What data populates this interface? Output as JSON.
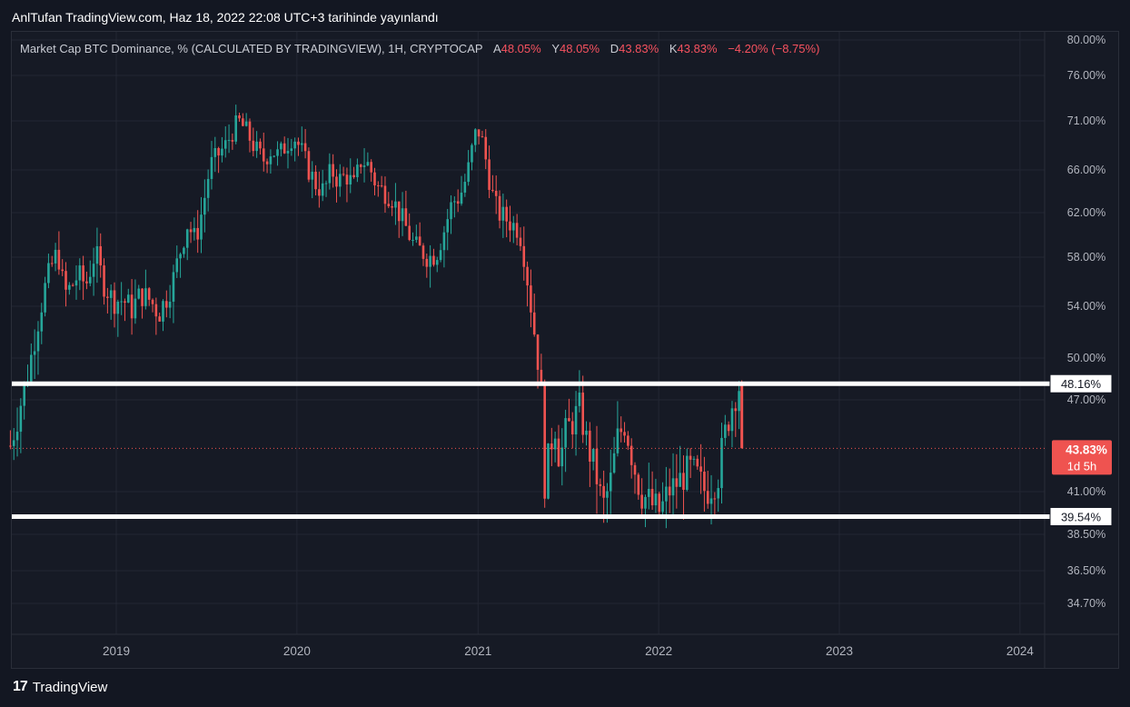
{
  "header": {
    "published": "AnlTufan TradingView.com, Haz 18, 2022 22:08 UTC+3 tarihinde yayınlandı"
  },
  "legend": {
    "symbol": "Market Cap BTC Dominance, % (CALCULATED BY TRADINGVIEW), 1H, CRYPTOCAP",
    "o_label": "A",
    "o_value": "48.05%",
    "h_label": "Y",
    "h_value": "48.05%",
    "l_label": "D",
    "l_value": "43.83%",
    "c_label": "K",
    "c_value": "43.83%",
    "change": "−4.20% (−8.75%)"
  },
  "footer": {
    "brand": "TradingView",
    "logo": "17"
  },
  "colors": {
    "up": "#26a69a",
    "down": "#ef5350",
    "bg": "#161a25",
    "grid": "#232733",
    "axis_text": "#b2b5be"
  },
  "chart_data": {
    "type": "candlestick",
    "y_ticks": [
      "80.00%",
      "76.00%",
      "71.00%",
      "66.00%",
      "62.00%",
      "58.00%",
      "54.00%",
      "50.00%",
      "47.00%",
      "41.00%",
      "38.50%",
      "36.50%",
      "34.70%"
    ],
    "x_ticks": [
      "2019",
      "2020",
      "2021",
      "2022",
      "2023",
      "2024"
    ],
    "horizontal_lines": [
      {
        "label": "48.16%",
        "value": 48.16
      },
      {
        "label": "39.54%",
        "value": 39.54
      }
    ],
    "last_price": {
      "label": "43.83%",
      "value": 43.83,
      "countdown": "1d 5h"
    },
    "price_path": [
      [
        "2018-06-01",
        44.0
      ],
      [
        "2018-06-20",
        46.5
      ],
      [
        "2018-07-10",
        49.5
      ],
      [
        "2018-07-25",
        52.5
      ],
      [
        "2018-08-10",
        55.5
      ],
      [
        "2018-08-25",
        57.5
      ],
      [
        "2018-09-05",
        58.5
      ],
      [
        "2018-09-18",
        55.0
      ],
      [
        "2018-10-01",
        55.5
      ],
      [
        "2018-10-15",
        56.5
      ],
      [
        "2018-11-01",
        55.8
      ],
      [
        "2018-11-20",
        58.5
      ],
      [
        "2018-12-05",
        56.0
      ],
      [
        "2018-12-25",
        54.5
      ],
      [
        "2019-01-15",
        54.5
      ],
      [
        "2019-02-01",
        53.8
      ],
      [
        "2019-02-20",
        55.0
      ],
      [
        "2019-03-10",
        54.5
      ],
      [
        "2019-03-28",
        53.5
      ],
      [
        "2019-04-10",
        54.5
      ],
      [
        "2019-04-25",
        56.0
      ],
      [
        "2019-05-10",
        58.5
      ],
      [
        "2019-05-25",
        61.0
      ],
      [
        "2019-06-10",
        59.5
      ],
      [
        "2019-06-25",
        62.5
      ],
      [
        "2019-07-10",
        66.5
      ],
      [
        "2019-07-25",
        67.5
      ],
      [
        "2019-08-10",
        68.5
      ],
      [
        "2019-08-25",
        70.0
      ],
      [
        "2019-09-05",
        71.0
      ],
      [
        "2019-09-20",
        70.0
      ],
      [
        "2019-10-05",
        68.5
      ],
      [
        "2019-10-25",
        67.0
      ],
      [
        "2019-11-10",
        68.0
      ],
      [
        "2019-11-25",
        67.5
      ],
      [
        "2019-12-10",
        68.5
      ],
      [
        "2019-12-25",
        69.5
      ],
      [
        "2020-01-10",
        68.0
      ],
      [
        "2020-01-25",
        66.0
      ],
      [
        "2020-02-10",
        64.5
      ],
      [
        "2020-02-25",
        64.0
      ],
      [
        "2020-03-10",
        66.0
      ],
      [
        "2020-03-25",
        65.0
      ],
      [
        "2020-04-10",
        65.5
      ],
      [
        "2020-04-25",
        64.5
      ],
      [
        "2020-05-10",
        67.0
      ],
      [
        "2020-05-25",
        66.5
      ],
      [
        "2020-06-10",
        64.5
      ],
      [
        "2020-06-25",
        64.0
      ],
      [
        "2020-07-10",
        63.5
      ],
      [
        "2020-07-25",
        62.0
      ],
      [
        "2020-08-10",
        60.5
      ],
      [
        "2020-08-25",
        59.0
      ],
      [
        "2020-09-10",
        58.5
      ],
      [
        "2020-09-25",
        58.0
      ],
      [
        "2020-10-10",
        58.5
      ],
      [
        "2020-10-25",
        60.5
      ],
      [
        "2020-11-10",
        63.0
      ],
      [
        "2020-11-25",
        63.5
      ],
      [
        "2020-12-10",
        65.5
      ],
      [
        "2020-12-25",
        69.5
      ],
      [
        "2021-01-05",
        70.0
      ],
      [
        "2021-01-15",
        67.5
      ],
      [
        "2021-01-28",
        64.0
      ],
      [
        "2021-02-10",
        62.0
      ],
      [
        "2021-02-25",
        61.5
      ],
      [
        "2021-03-10",
        61.0
      ],
      [
        "2021-03-25",
        60.5
      ],
      [
        "2021-04-05",
        58.0
      ],
      [
        "2021-04-18",
        54.0
      ],
      [
        "2021-04-30",
        50.5
      ],
      [
        "2021-05-08",
        48.0
      ],
      [
        "2021-05-15",
        41.5
      ],
      [
        "2021-05-25",
        43.5
      ],
      [
        "2021-06-05",
        45.5
      ],
      [
        "2021-06-15",
        43.0
      ],
      [
        "2021-06-28",
        45.0
      ],
      [
        "2021-07-10",
        45.5
      ],
      [
        "2021-07-25",
        46.5
      ],
      [
        "2021-08-10",
        44.0
      ],
      [
        "2021-08-25",
        42.5
      ],
      [
        "2021-09-10",
        40.0
      ],
      [
        "2021-09-25",
        41.5
      ],
      [
        "2021-10-10",
        44.5
      ],
      [
        "2021-10-25",
        45.5
      ],
      [
        "2021-11-10",
        43.0
      ],
      [
        "2021-11-25",
        41.0
      ],
      [
        "2021-12-10",
        40.5
      ],
      [
        "2021-12-25",
        40.0
      ],
      [
        "2022-01-05",
        39.8
      ],
      [
        "2022-01-20",
        41.0
      ],
      [
        "2022-02-05",
        41.5
      ],
      [
        "2022-02-20",
        42.0
      ],
      [
        "2022-03-05",
        42.5
      ],
      [
        "2022-03-20",
        42.0
      ],
      [
        "2022-04-05",
        41.0
      ],
      [
        "2022-04-20",
        41.5
      ],
      [
        "2022-05-01",
        42.0
      ],
      [
        "2022-05-10",
        44.0
      ],
      [
        "2022-05-20",
        45.5
      ],
      [
        "2022-06-01",
        47.0
      ],
      [
        "2022-06-13",
        48.0
      ],
      [
        "2022-06-18",
        43.83
      ]
    ]
  }
}
